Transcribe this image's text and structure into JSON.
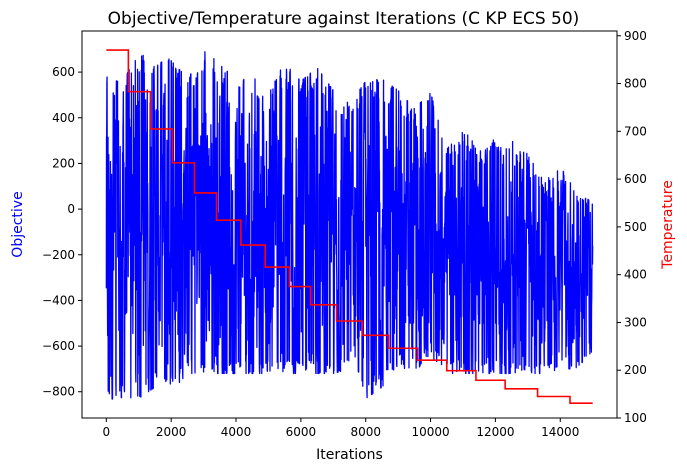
{
  "chart_data": {
    "type": "line",
    "title": "Objective/Temperature against Iterations (C KP ECS 50)",
    "xlabel": "Iterations",
    "ylabel_left": "Objective",
    "ylabel_right": "Temperature",
    "xlim": [
      -750,
      15750
    ],
    "ylim_left": [
      -915,
      780
    ],
    "ylim_right": [
      100,
      910
    ],
    "xticks": [
      0,
      2000,
      4000,
      6000,
      8000,
      10000,
      12000,
      14000
    ],
    "yticks_left": [
      -800,
      -600,
      -400,
      -200,
      0,
      200,
      400,
      600
    ],
    "yticks_right": [
      100,
      200,
      300,
      400,
      500,
      600,
      700,
      800,
      900
    ],
    "grid": false,
    "series": [
      {
        "name": "Objective",
        "axis": "left",
        "color": "#0000ff",
        "style": "dense-noisy-line",
        "x_range": [
          0,
          15000
        ],
        "envelope_x": [
          0,
          500,
          1000,
          1500,
          2000,
          2500,
          3000,
          3500,
          4000,
          4500,
          5000,
          5500,
          6000,
          6500,
          7000,
          7500,
          8000,
          8500,
          9000,
          9500,
          10000,
          10500,
          11000,
          11500,
          12000,
          12500,
          13000,
          13500,
          14000,
          14500,
          15000
        ],
        "envelope_max": [
          580,
          550,
          700,
          620,
          680,
          560,
          710,
          640,
          560,
          580,
          520,
          640,
          560,
          620,
          520,
          460,
          560,
          570,
          520,
          440,
          510,
          260,
          370,
          250,
          310,
          300,
          240,
          120,
          180,
          100,
          20
        ],
        "envelope_min": [
          -830,
          -835,
          -830,
          -780,
          -800,
          -720,
          -720,
          -720,
          -720,
          -720,
          -720,
          -720,
          -720,
          -720,
          -720,
          -700,
          -830,
          -780,
          -690,
          -710,
          -650,
          -720,
          -720,
          -720,
          -720,
          -720,
          -720,
          -720,
          -700,
          -700,
          -620
        ]
      },
      {
        "name": "Temperature",
        "axis": "right",
        "color": "#ff0000",
        "style": "step",
        "x": [
          0,
          680,
          680,
          1360,
          1360,
          2040,
          2040,
          2720,
          2720,
          3400,
          3400,
          4150,
          4150,
          4900,
          4900,
          5650,
          5650,
          6300,
          6300,
          7100,
          7100,
          7900,
          7900,
          8700,
          8700,
          9600,
          9600,
          10500,
          10500,
          11400,
          11400,
          12300,
          12300,
          13300,
          13300,
          14300,
          14300,
          15000
        ],
        "y": [
          870,
          870,
          783,
          783,
          705,
          705,
          634,
          634,
          571,
          571,
          514,
          514,
          462,
          462,
          416,
          416,
          375,
          375,
          337,
          337,
          303,
          303,
          273,
          273,
          246,
          246,
          221,
          221,
          199,
          199,
          179,
          179,
          161,
          161,
          145,
          145,
          131,
          131
        ]
      }
    ]
  }
}
